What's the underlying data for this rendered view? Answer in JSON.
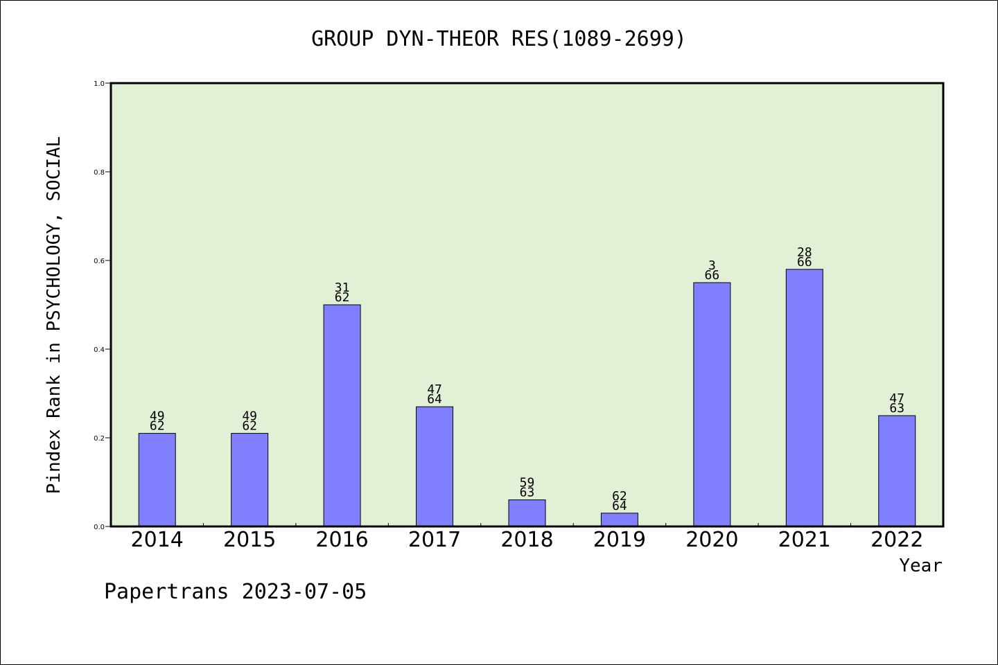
{
  "chart_data": {
    "type": "bar",
    "title": "GROUP DYN-THEOR RES(1089-2699)",
    "xlabel": "Year",
    "ylabel": "Pindex Rank in PSYCHOLOGY, SOCIAL",
    "ylim": [
      0,
      1.0
    ],
    "yticks": [
      "0.0",
      "0.2",
      "0.4",
      "0.6",
      "0.8",
      "1.0"
    ],
    "categories": [
      "2014",
      "2015",
      "2016",
      "2017",
      "2018",
      "2019",
      "2020",
      "2021",
      "2022"
    ],
    "values": [
      0.21,
      0.21,
      0.5,
      0.27,
      0.06,
      0.03,
      0.55,
      0.58,
      0.25
    ],
    "labels_top": [
      "49",
      "49",
      "31",
      "47",
      "59",
      "62",
      "3",
      "28",
      "47"
    ],
    "labels_bottom": [
      "62",
      "62",
      "62",
      "64",
      "63",
      "64",
      "66",
      "66",
      "63"
    ],
    "footer": "Papertrans 2023-07-05",
    "colors": {
      "bar": "#8080ff",
      "plot_background": "#e2f0d6",
      "axis": "#000000"
    }
  }
}
